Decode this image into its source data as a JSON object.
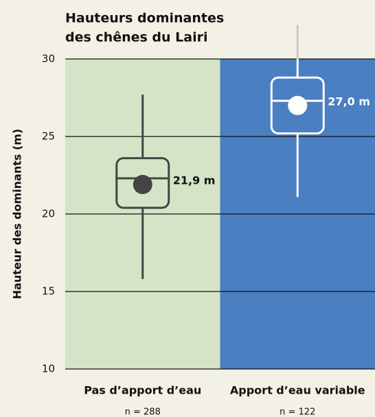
{
  "chart_data": {
    "type": "box",
    "title": [
      "Hauteurs dominantes",
      "des chênes du Lairi"
    ],
    "y_label": "Hauteur des dominants (m)",
    "categories": [
      "Pas d’apport d’eau",
      "Apport d’eau variable"
    ],
    "n_labels": [
      "n = 288",
      "n = 122"
    ],
    "boxes": [
      {
        "whislo": 15.8,
        "q1": 20.4,
        "med": 22.3,
        "q3": 23.6,
        "whishi": 27.7,
        "mean": 21.9
      },
      {
        "whislo": 21.1,
        "q1": 25.2,
        "med": 27.3,
        "q3": 28.8,
        "whishi": 32.2,
        "mean": 27.0
      }
    ],
    "mean_labels": [
      "21,9 m",
      "27,0 m"
    ],
    "background_colors": [
      "#d5e4c7",
      "#4a7fc1"
    ],
    "mark_colors": [
      "#444444",
      "#ffffff"
    ],
    "ylim": [
      10,
      30
    ],
    "yticks": [
      10,
      15,
      20,
      25,
      30
    ],
    "grid": true
  }
}
